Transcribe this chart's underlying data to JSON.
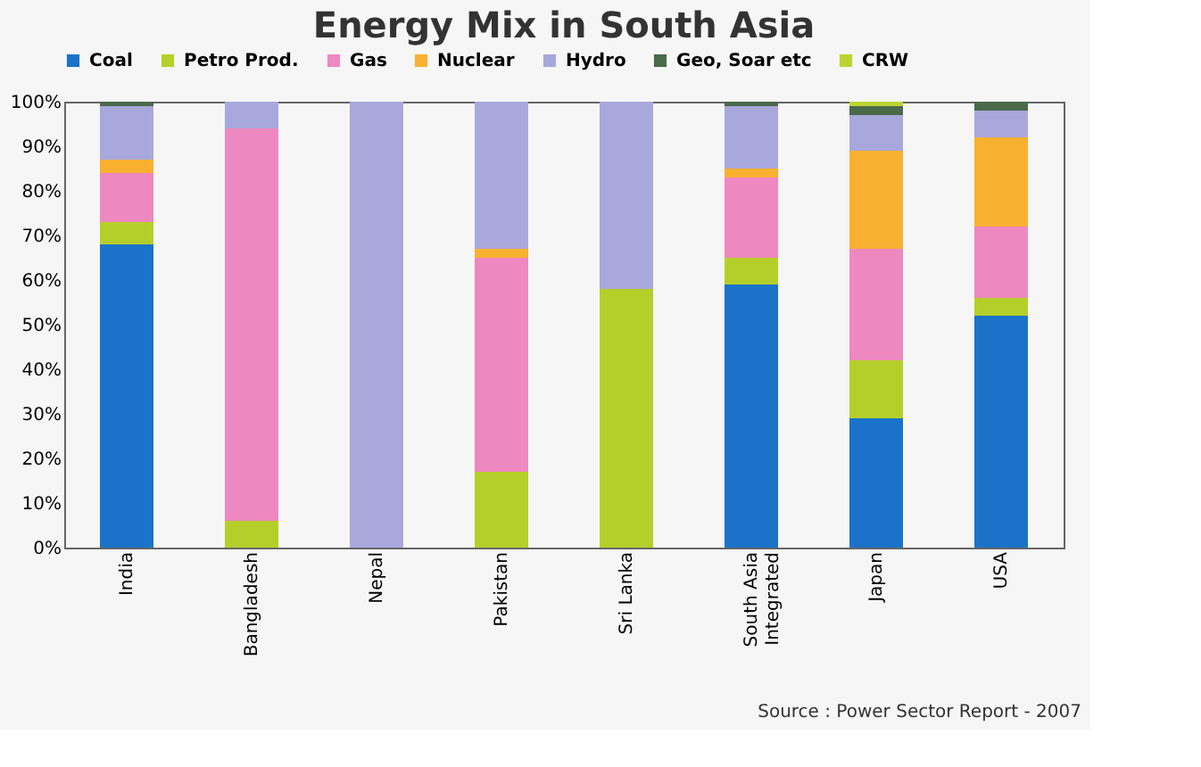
{
  "chart_data": {
    "type": "bar",
    "title": "Energy Mix in South Asia",
    "stacked": true,
    "categories": [
      "India",
      "Bangladesh",
      "Nepal",
      "Pakistan",
      "Sri Lanka",
      "South Asia Integrated",
      "Japan",
      "USA"
    ],
    "series": [
      {
        "name": "Coal",
        "color": "#1a73c8",
        "values": [
          68,
          0,
          0,
          0,
          0,
          59,
          29,
          52
        ]
      },
      {
        "name": "Petro Prod.",
        "color": "#b5cf2a",
        "values": [
          5,
          6,
          0,
          17,
          58,
          6,
          13,
          4
        ]
      },
      {
        "name": "Gas",
        "color": "#ee88c0",
        "values": [
          11,
          88,
          0,
          48,
          0,
          18,
          25,
          16
        ]
      },
      {
        "name": "Nuclear",
        "color": "#f8b030",
        "values": [
          3,
          0,
          0,
          2,
          0,
          2,
          22,
          20
        ]
      },
      {
        "name": "Hydro",
        "color": "#a8a8dc",
        "values": [
          12,
          6,
          100,
          33,
          42,
          14,
          8,
          6
        ]
      },
      {
        "name": "Geo, Soar etc",
        "color": "#4a6a4a",
        "values": [
          1,
          0,
          0,
          0,
          0,
          1,
          2,
          2
        ]
      },
      {
        "name": "CRW",
        "color": "#bcd432",
        "values": [
          0,
          0,
          0,
          0,
          0,
          0,
          1,
          0
        ]
      }
    ],
    "ylim": [
      0,
      100
    ],
    "yticks": [
      {
        "value": 0,
        "label": "0%"
      },
      {
        "value": 10,
        "label": "10%"
      },
      {
        "value": 20,
        "label": "20%"
      },
      {
        "value": 30,
        "label": "30%"
      },
      {
        "value": 40,
        "label": "40%"
      },
      {
        "value": 50,
        "label": "50%"
      },
      {
        "value": 60,
        "label": "60%"
      },
      {
        "value": 70,
        "label": "70%"
      },
      {
        "value": 80,
        "label": "80%"
      },
      {
        "value": 90,
        "label": "90%"
      },
      {
        "value": 100,
        "label": "100%"
      }
    ],
    "grid": false,
    "legend": "top",
    "annotations": [
      "Source : Power Sector Report - 2007"
    ]
  }
}
